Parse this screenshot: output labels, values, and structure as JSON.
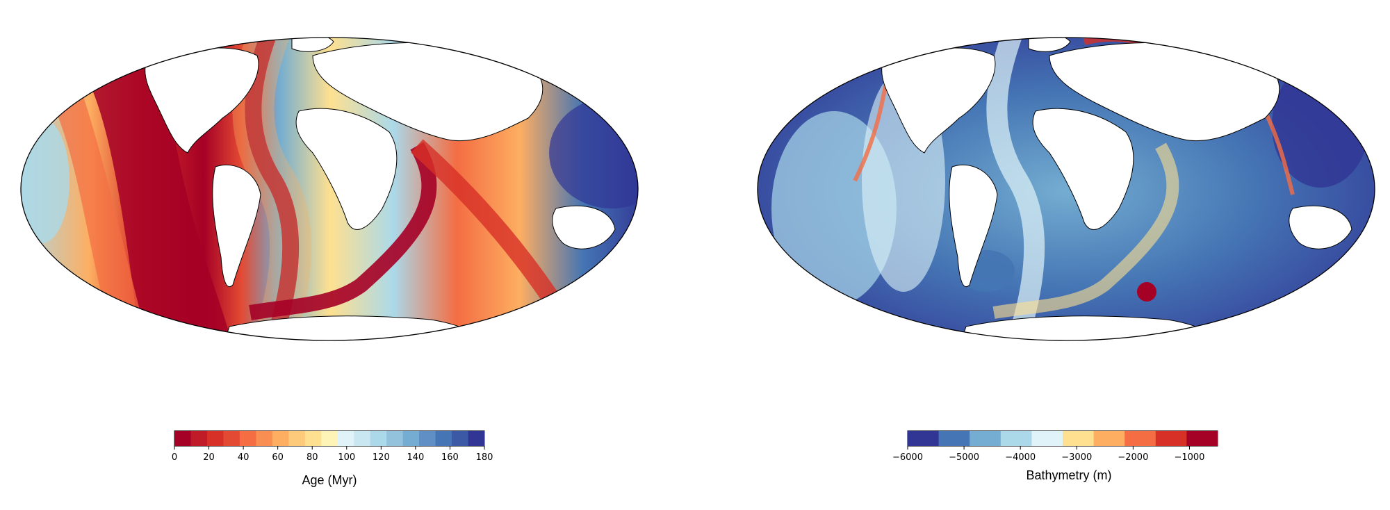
{
  "panels": [
    {
      "colorbar": {
        "label": "Age (Myr)",
        "ticks": [
          "0",
          "20",
          "40",
          "60",
          "80",
          "100",
          "120",
          "140",
          "160",
          "180"
        ],
        "tick_values": [
          0,
          20,
          40,
          60,
          80,
          100,
          120,
          140,
          160,
          180
        ],
        "range": [
          0,
          180
        ],
        "colors": [
          "#a50026",
          "#bf1c28",
          "#d73027",
          "#e34a33",
          "#f46d43",
          "#f98e52",
          "#fdae61",
          "#fdc97a",
          "#fee090",
          "#fff4b8",
          "#e0f3f8",
          "#c9e7f1",
          "#abd9e9",
          "#93c2dd",
          "#74add1",
          "#5f8fc4",
          "#4575b4",
          "#3b59a5",
          "#313695"
        ]
      },
      "map": {
        "projection": "mollweide",
        "land_color": "#ffffff",
        "coastline_color": "#000000"
      }
    },
    {
      "colorbar": {
        "label": "Bathymetry (m)",
        "ticks": [
          "−6000",
          "−5000",
          "−4000",
          "−3000",
          "−2000",
          "−1000"
        ],
        "tick_values": [
          -6000,
          -5000,
          -4000,
          -3000,
          -2000,
          -1000
        ],
        "range": [
          -6000,
          -500
        ],
        "colors": [
          "#313695",
          "#4575b4",
          "#74add1",
          "#abd9e9",
          "#e0f3f8",
          "#fee090",
          "#fdae61",
          "#f46d43",
          "#d73027",
          "#a50026"
        ]
      },
      "map": {
        "projection": "mollweide",
        "land_color": "#ffffff",
        "coastline_color": "#000000"
      }
    }
  ]
}
